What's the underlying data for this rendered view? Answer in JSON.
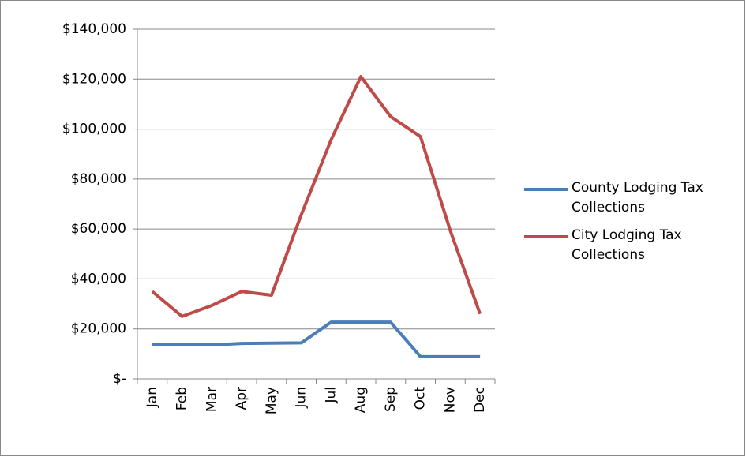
{
  "chart_data": {
    "type": "line",
    "categories": [
      "Jan",
      "Feb",
      "Mar",
      "Apr",
      "May",
      "Jun",
      "Jul",
      "Aug",
      "Sep",
      "Oct",
      "Nov",
      "Dec"
    ],
    "series": [
      {
        "name": "County Lodging Tax Collections",
        "color": "#4a7ebb",
        "values": [
          13600,
          13600,
          13600,
          14200,
          14300,
          14400,
          22700,
          22700,
          22700,
          8900,
          8900,
          8900
        ]
      },
      {
        "name": "City Lodging Tax Collections",
        "color": "#be4b48",
        "values": [
          35000,
          25000,
          29400,
          35000,
          33500,
          65700,
          95700,
          121000,
          105000,
          97000,
          59400,
          26000
        ]
      }
    ],
    "ylim": [
      0,
      140000
    ],
    "yticks": [
      {
        "value": 0,
        "label": "$-"
      },
      {
        "value": 20000,
        "label": "$20,000"
      },
      {
        "value": 40000,
        "label": "$40,000"
      },
      {
        "value": 60000,
        "label": "$60,000"
      },
      {
        "value": 80000,
        "label": "$80,000"
      },
      {
        "value": 100000,
        "label": "$100,000"
      },
      {
        "value": 120000,
        "label": "$120,000"
      },
      {
        "value": 140000,
        "label": "$140,000"
      }
    ],
    "grid": true,
    "legend": "right"
  }
}
